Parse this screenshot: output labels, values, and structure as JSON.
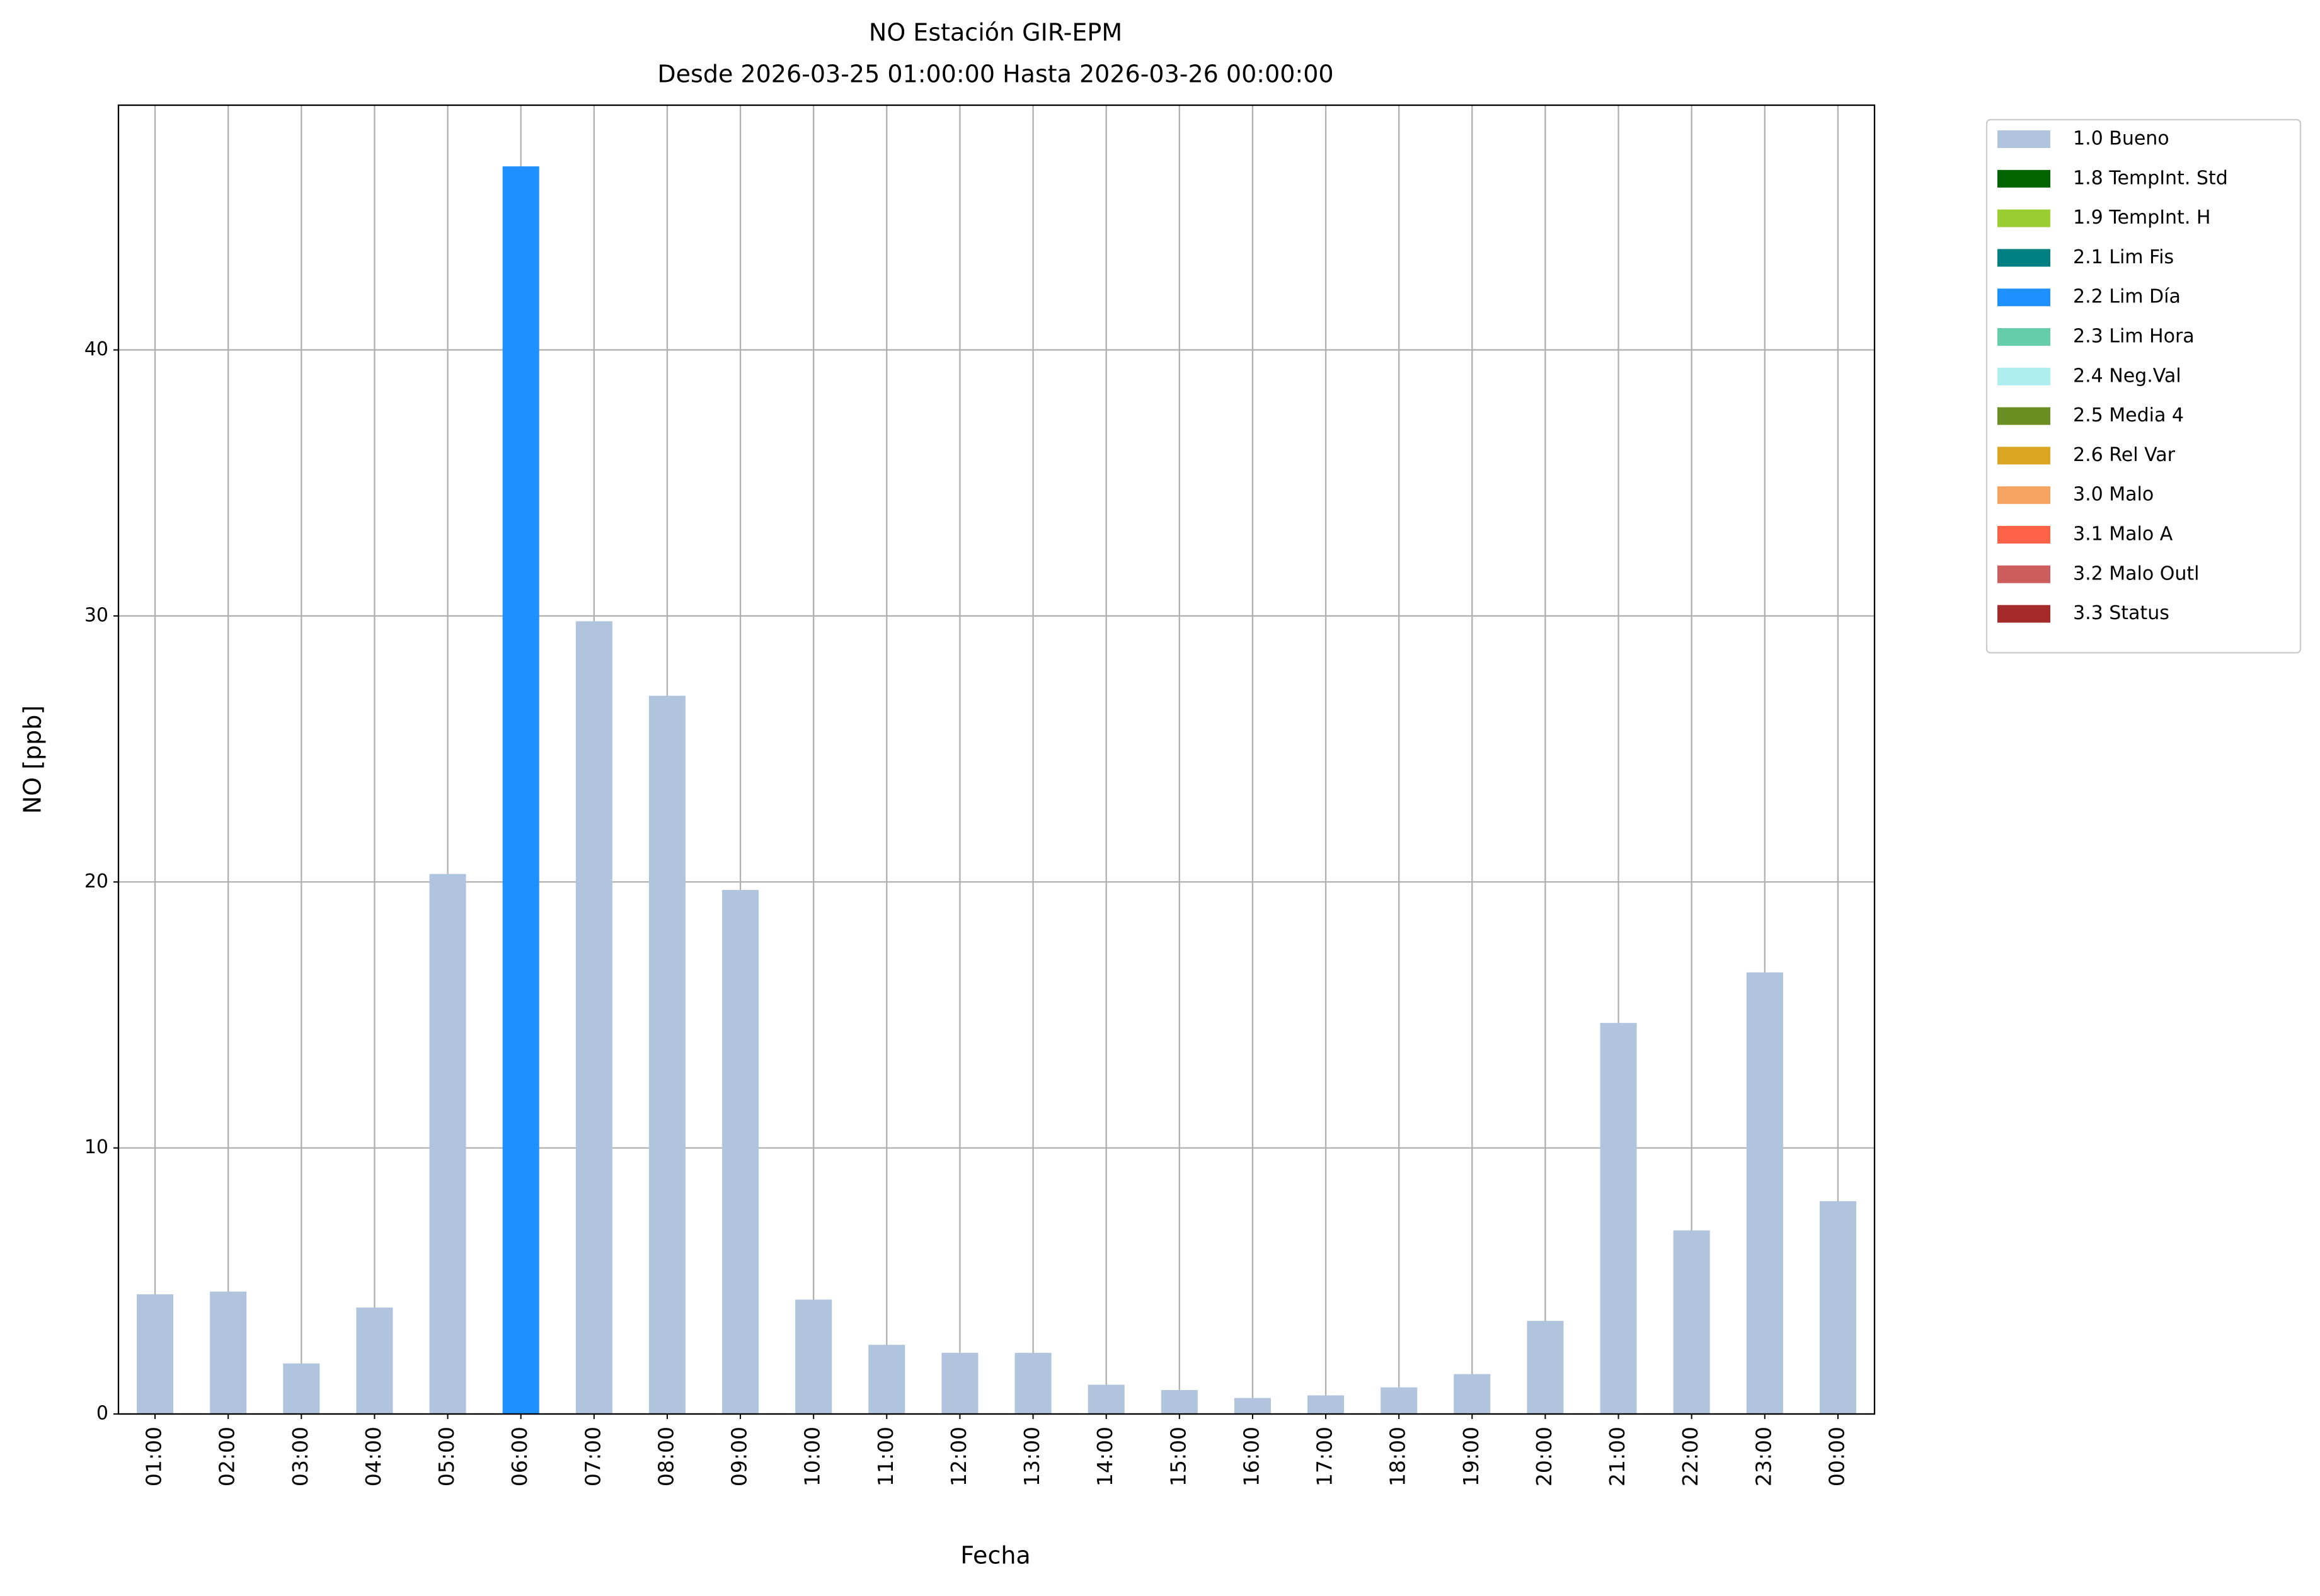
{
  "chart_data": {
    "type": "bar",
    "stacked": true,
    "title": "NO Estación GIR-EPM",
    "subtitle": "Desde 2026-03-25 01:00:00 Hasta 2026-03-26 00:00:00",
    "x_label": "Fecha",
    "y_label": "NO [ppb]",
    "categories": [
      "01:00",
      "02:00",
      "03:00",
      "04:00",
      "05:00",
      "06:00",
      "07:00",
      "08:00",
      "09:00",
      "10:00",
      "11:00",
      "12:00",
      "13:00",
      "14:00",
      "15:00",
      "16:00",
      "17:00",
      "18:00",
      "19:00",
      "20:00",
      "21:00",
      "22:00",
      "23:00",
      "00:00"
    ],
    "series": [
      {
        "name": "1.0 Bueno",
        "color": "#b0c4de",
        "values": [
          4.5,
          4.6,
          1.9,
          4.0,
          20.3,
          null,
          29.8,
          27.0,
          19.7,
          4.3,
          2.6,
          2.3,
          2.3,
          1.1,
          0.9,
          0.6,
          0.7,
          1.0,
          1.5,
          3.5,
          14.7,
          6.9,
          16.6,
          8.0
        ]
      },
      {
        "name": "1.8 TempInt. Std",
        "color": "#006400",
        "values": [
          null,
          null,
          null,
          null,
          null,
          null,
          null,
          null,
          null,
          null,
          null,
          null,
          null,
          null,
          null,
          null,
          null,
          null,
          null,
          null,
          null,
          null,
          null,
          null
        ]
      },
      {
        "name": "1.9 TempInt. H",
        "color": "#9acd32",
        "values": [
          null,
          null,
          null,
          null,
          null,
          null,
          null,
          null,
          null,
          null,
          null,
          null,
          null,
          null,
          null,
          null,
          null,
          null,
          null,
          null,
          null,
          null,
          null,
          null
        ]
      },
      {
        "name": "2.1 Lim Fis",
        "color": "#008080",
        "values": [
          null,
          null,
          null,
          null,
          null,
          null,
          null,
          null,
          null,
          null,
          null,
          null,
          null,
          null,
          null,
          null,
          null,
          null,
          null,
          null,
          null,
          null,
          null,
          null
        ]
      },
      {
        "name": "2.2 Lim Día",
        "color": "#1e90ff",
        "values": [
          null,
          null,
          null,
          null,
          null,
          46.9,
          null,
          null,
          null,
          null,
          null,
          null,
          null,
          null,
          null,
          null,
          null,
          null,
          null,
          null,
          null,
          null,
          null,
          null
        ]
      },
      {
        "name": "2.3 Lim Hora",
        "color": "#66cdaa",
        "values": [
          null,
          null,
          null,
          null,
          null,
          null,
          null,
          null,
          null,
          null,
          null,
          null,
          null,
          null,
          null,
          null,
          null,
          null,
          null,
          null,
          null,
          null,
          null,
          null
        ]
      },
      {
        "name": "2.4 Neg.Val",
        "color": "#afeeee",
        "values": [
          null,
          null,
          null,
          null,
          null,
          null,
          null,
          null,
          null,
          null,
          null,
          null,
          null,
          null,
          null,
          null,
          null,
          null,
          null,
          null,
          null,
          null,
          null,
          null
        ]
      },
      {
        "name": "2.5 Media 4",
        "color": "#6b8e23",
        "values": [
          null,
          null,
          null,
          null,
          null,
          null,
          null,
          null,
          null,
          null,
          null,
          null,
          null,
          null,
          null,
          null,
          null,
          null,
          null,
          null,
          null,
          null,
          null,
          null
        ]
      },
      {
        "name": "2.6 Rel Var",
        "color": "#daa520",
        "values": [
          null,
          null,
          null,
          null,
          null,
          null,
          null,
          null,
          null,
          null,
          null,
          null,
          null,
          null,
          null,
          null,
          null,
          null,
          null,
          null,
          null,
          null,
          null,
          null
        ]
      },
      {
        "name": "3.0 Malo",
        "color": "#f4a460",
        "values": [
          null,
          null,
          null,
          null,
          null,
          null,
          null,
          null,
          null,
          null,
          null,
          null,
          null,
          null,
          null,
          null,
          null,
          null,
          null,
          null,
          null,
          null,
          null,
          null
        ]
      },
      {
        "name": "3.1 Malo A",
        "color": "#ff6347",
        "values": [
          null,
          null,
          null,
          null,
          null,
          null,
          null,
          null,
          null,
          null,
          null,
          null,
          null,
          null,
          null,
          null,
          null,
          null,
          null,
          null,
          null,
          null,
          null,
          null
        ]
      },
      {
        "name": "3.2 Malo Outl",
        "color": "#cd5c5c",
        "values": [
          null,
          null,
          null,
          null,
          null,
          null,
          null,
          null,
          null,
          null,
          null,
          null,
          null,
          null,
          null,
          null,
          null,
          null,
          null,
          null,
          null,
          null,
          null,
          null
        ]
      },
      {
        "name": "3.3 Status",
        "color": "#a52a2a",
        "values": [
          null,
          null,
          null,
          null,
          null,
          null,
          null,
          null,
          null,
          null,
          null,
          null,
          null,
          null,
          null,
          null,
          null,
          null,
          null,
          null,
          null,
          null,
          null,
          null
        ]
      }
    ],
    "ylim": [
      0,
      49.2
    ],
    "yticks": [
      0,
      10,
      20,
      30,
      40
    ],
    "grid": true,
    "legend": "outside-upper-right"
  }
}
